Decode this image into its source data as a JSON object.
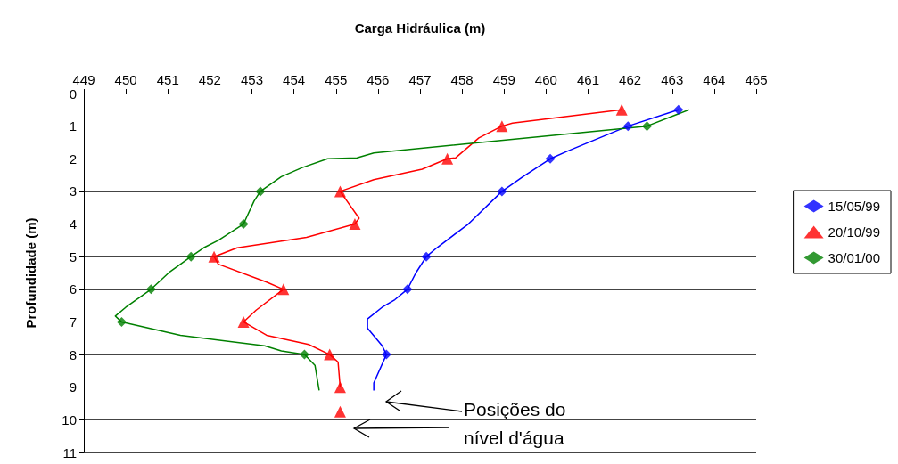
{
  "chart_data": {
    "type": "line",
    "xlabel": "Carga Hidráulica (m)",
    "ylabel": "Profundidade (m)",
    "xlim": [
      449,
      465
    ],
    "xticks": [
      449,
      450,
      451,
      452,
      453,
      454,
      455,
      456,
      457,
      458,
      459,
      460,
      461,
      462,
      463,
      464,
      465
    ],
    "ylim": [
      11,
      0
    ],
    "yticks": [
      0,
      1,
      2,
      3,
      4,
      5,
      6,
      7,
      8,
      9,
      10,
      11
    ],
    "grid": "y",
    "legend": "right",
    "annotations": [
      "Posições do nível d'água"
    ],
    "series": [
      {
        "name": "15/05/99",
        "type": "scatter",
        "marker": "diamond",
        "color": "#0000ff",
        "x": [
          463.15,
          461.95,
          460.1,
          458.95,
          457.15,
          456.7,
          456.2
        ],
        "values": [
          0.5,
          1,
          2,
          3,
          5,
          6,
          8
        ]
      },
      {
        "name": "20/10/99",
        "type": "scatter",
        "marker": "triangle",
        "color": "#ff0000",
        "x": [
          461.8,
          458.95,
          457.65,
          455.1,
          455.45,
          452.1,
          453.75,
          452.8,
          454.85,
          455.1,
          455.1
        ],
        "values": [
          0.5,
          1,
          2,
          3,
          4,
          5,
          6,
          7,
          8,
          9,
          9.75
        ]
      },
      {
        "name": "30/01/00",
        "type": "scatter",
        "marker": "diamond",
        "color": "#008000",
        "x": [
          462.4,
          453.2,
          452.8,
          451.55,
          450.6,
          449.9,
          454.25
        ],
        "values": [
          1,
          3,
          4,
          5,
          6,
          7,
          8
        ]
      },
      {
        "marker": "none",
        "color": "#0000ff",
        "x": [
          463.15,
          461.95,
          460.5,
          460.1,
          459.45,
          458.95,
          458.15,
          457.4,
          457.15,
          456.9,
          456.7,
          456.4,
          456.1,
          455.75,
          455.75,
          456.1,
          456.2,
          455.9,
          455.9
        ],
        "values": [
          0.5,
          1,
          1.77,
          2,
          2.55,
          3,
          4,
          4.73,
          5,
          5.5,
          6,
          6.32,
          6.55,
          6.91,
          7.19,
          7.73,
          8,
          8.87,
          9.1
        ]
      },
      {
        "marker": "none",
        "color": "#ff0000",
        "x": [
          461.8,
          459.2,
          458.95,
          458.4,
          457.85,
          457.65,
          457.05,
          455.9,
          455.1,
          455.55,
          455.45,
          454.3,
          452.65,
          452.1,
          452.2,
          453.35,
          453.75,
          453.1,
          452.8,
          453.35,
          454.35,
          454.85,
          455.05,
          455.1
        ],
        "values": [
          0.5,
          0.91,
          1,
          1.36,
          1.97,
          2,
          2.32,
          2.64,
          3,
          3.82,
          4,
          4.41,
          4.73,
          5,
          5.23,
          5.78,
          6,
          6.64,
          7,
          7.41,
          7.69,
          8,
          8.23,
          9
        ]
      },
      {
        "marker": "none",
        "color": "#008000",
        "x": [
          463.4,
          462.4,
          455.9,
          455.5,
          454.8,
          454.2,
          453.7,
          453.2,
          453.05,
          452.8,
          452.2,
          451.85,
          451.55,
          451.05,
          450.6,
          450.0,
          449.75,
          449.9,
          451.3,
          453.3,
          453.7,
          454.25,
          454.5,
          454.6
        ],
        "values": [
          0.5,
          1,
          1.82,
          1.97,
          2,
          2.27,
          2.55,
          3,
          3.3,
          4,
          4.5,
          4.73,
          5,
          5.46,
          6,
          6.55,
          6.82,
          7,
          7.41,
          7.73,
          7.89,
          8,
          8.33,
          9.1
        ]
      }
    ]
  }
}
